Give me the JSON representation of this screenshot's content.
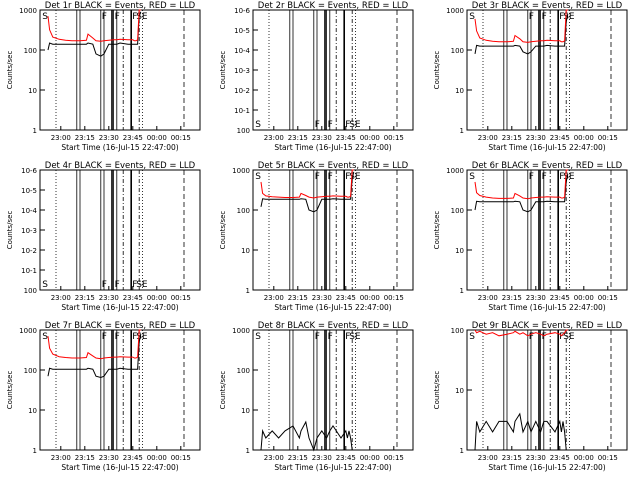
{
  "figure": {
    "start_time": "Start Time (16-Jul-15 22:47:00)",
    "ylabel": "Counts/sec",
    "x_tick_labels": [
      "23:00",
      "23:15",
      "23:30",
      "23:45",
      "00:00",
      "00:15"
    ]
  },
  "chart_data": [
    {
      "type": "line",
      "title": "Det 1r BLACK = Events, RED = LLD",
      "xlabel": "Start Time (16-Jul-15 22:47:00)",
      "ylabel": "Counts/sec",
      "yscale": "log",
      "ylim": [
        1,
        1000
      ],
      "y_tick_labels": [
        "1",
        "10",
        "100",
        "1000"
      ],
      "x_minutes_range": [
        0,
        72
      ],
      "series": [
        {
          "color": "#000000",
          "x": [
            5,
            6,
            8,
            12,
            16,
            20,
            25,
            29,
            30,
            33,
            35,
            38,
            40,
            43,
            46,
            48,
            50,
            55,
            58,
            59,
            60,
            61,
            62,
            63
          ],
          "y": [
            100,
            150,
            140,
            140,
            140,
            140,
            140,
            140,
            150,
            140,
            80,
            70,
            80,
            140,
            140,
            140,
            150,
            140,
            140,
            140,
            140,
            140,
            700,
            900
          ]
        },
        {
          "color": "#ff0000",
          "x": [
            5,
            6,
            8,
            12,
            16,
            20,
            25,
            29,
            30,
            33,
            35,
            38,
            40,
            43,
            46,
            48,
            50,
            55,
            58,
            59,
            60,
            61,
            62,
            63
          ],
          "y": [
            700,
            320,
            210,
            185,
            175,
            170,
            170,
            175,
            250,
            200,
            170,
            165,
            170,
            175,
            180,
            180,
            185,
            180,
            180,
            170,
            170,
            180,
            1000,
            1000
          ]
        }
      ],
      "annotations": [
        "S",
        "F",
        "F",
        "F",
        "SE"
      ]
    },
    {
      "type": "line",
      "title": "Det 2r BLACK = Events, RED = LLD",
      "xlabel": "Start Time (16-Jul-15 22:47:00)",
      "ylabel": "Counts/sec",
      "yscale": "log",
      "ylim": [
        1,
        1000000
      ],
      "y_tick_labels": [
        "10^0",
        "10^-1",
        "10^-2",
        "10^-3",
        "10^-4",
        "10^-5",
        "10^-6"
      ],
      "x_minutes_range": [
        0,
        72
      ],
      "series": [],
      "annotations": [
        "S",
        "F",
        "F",
        "F",
        "SE"
      ]
    },
    {
      "type": "line",
      "title": "Det 3r BLACK = Events, RED = LLD",
      "xlabel": "Start Time (16-Jul-15 22:47:00)",
      "ylabel": "Counts/sec",
      "yscale": "log",
      "ylim": [
        1,
        1000
      ],
      "y_tick_labels": [
        "1",
        "10",
        "100",
        "1000"
      ],
      "x_minutes_range": [
        0,
        72
      ],
      "series": [
        {
          "color": "#000000",
          "x": [
            5,
            6,
            8,
            12,
            16,
            20,
            25,
            29,
            30,
            33,
            35,
            38,
            40,
            43,
            46,
            48,
            50,
            55,
            58,
            59,
            60,
            61,
            62,
            63
          ],
          "y": [
            80,
            130,
            125,
            125,
            125,
            125,
            125,
            125,
            130,
            125,
            90,
            80,
            90,
            125,
            125,
            125,
            130,
            125,
            125,
            125,
            125,
            125,
            500,
            800
          ]
        },
        {
          "color": "#ff0000",
          "x": [
            5,
            6,
            8,
            12,
            16,
            20,
            25,
            29,
            30,
            33,
            35,
            38,
            40,
            43,
            46,
            48,
            50,
            55,
            58,
            59,
            60,
            61,
            62,
            63
          ],
          "y": [
            600,
            300,
            200,
            175,
            165,
            160,
            160,
            165,
            230,
            190,
            160,
            155,
            160,
            165,
            170,
            170,
            175,
            170,
            170,
            160,
            160,
            170,
            1000,
            1000
          ]
        }
      ],
      "annotations": [
        "S",
        "F",
        "F",
        "F",
        "SE"
      ]
    },
    {
      "type": "line",
      "title": "Det 4r BLACK = Events, RED = LLD",
      "xlabel": "Start Time (16-Jul-15 22:47:00)",
      "ylabel": "Counts/sec",
      "yscale": "log",
      "ylim": [
        1,
        1000000
      ],
      "y_tick_labels": [
        "10^0",
        "10^-1",
        "10^-2",
        "10^-3",
        "10^-4",
        "10^-5",
        "10^-6"
      ],
      "x_minutes_range": [
        0,
        72
      ],
      "series": [],
      "annotations": [
        "S",
        "F",
        "F",
        "F",
        "SE"
      ]
    },
    {
      "type": "line",
      "title": "Det 5r BLACK = Events, RED = LLD",
      "xlabel": "Start Time (16-Jul-15 22:47:00)",
      "ylabel": "Counts/sec",
      "yscale": "log",
      "ylim": [
        1,
        1000
      ],
      "y_tick_labels": [
        "1",
        "10",
        "100",
        "1000"
      ],
      "x_minutes_range": [
        0,
        72
      ],
      "series": [
        {
          "color": "#000000",
          "x": [
            5,
            6,
            8,
            12,
            16,
            20,
            25,
            29,
            30,
            33,
            35,
            38,
            40,
            43,
            46,
            48,
            50,
            55,
            58,
            59,
            60,
            61,
            62,
            63
          ],
          "y": [
            120,
            190,
            185,
            185,
            185,
            185,
            185,
            185,
            190,
            185,
            100,
            90,
            100,
            185,
            185,
            185,
            190,
            185,
            185,
            185,
            185,
            185,
            600,
            900
          ]
        },
        {
          "color": "#ff0000",
          "x": [
            5,
            6,
            8,
            12,
            16,
            20,
            25,
            29,
            30,
            33,
            35,
            38,
            40,
            43,
            46,
            48,
            50,
            55,
            58,
            59,
            60,
            61,
            62,
            63
          ],
          "y": [
            500,
            260,
            225,
            215,
            210,
            205,
            205,
            210,
            260,
            230,
            210,
            200,
            210,
            215,
            220,
            220,
            225,
            220,
            220,
            210,
            210,
            220,
            1000,
            1000
          ]
        }
      ],
      "annotations": [
        "S",
        "F",
        "F",
        "F",
        "SE"
      ]
    },
    {
      "type": "line",
      "title": "Det 6r BLACK = Events, RED = LLD",
      "xlabel": "Start Time (16-Jul-15 22:47:00)",
      "ylabel": "Counts/sec",
      "yscale": "log",
      "ylim": [
        1,
        1000
      ],
      "y_tick_labels": [
        "1",
        "10",
        "100",
        "1000"
      ],
      "x_minutes_range": [
        0,
        72
      ],
      "series": [
        {
          "color": "#000000",
          "x": [
            5,
            6,
            8,
            12,
            16,
            20,
            25,
            29,
            30,
            33,
            35,
            38,
            40,
            43,
            46,
            48,
            50,
            55,
            58,
            59,
            60,
            61,
            62,
            63
          ],
          "y": [
            100,
            165,
            160,
            160,
            160,
            160,
            160,
            160,
            165,
            160,
            100,
            90,
            100,
            160,
            160,
            160,
            165,
            160,
            160,
            160,
            160,
            160,
            500,
            800
          ]
        },
        {
          "color": "#ff0000",
          "x": [
            5,
            6,
            8,
            12,
            16,
            20,
            25,
            29,
            30,
            33,
            35,
            38,
            40,
            43,
            46,
            48,
            50,
            55,
            58,
            59,
            60,
            61,
            62,
            63
          ],
          "y": [
            500,
            270,
            230,
            210,
            200,
            195,
            195,
            200,
            260,
            225,
            200,
            190,
            200,
            205,
            210,
            210,
            215,
            210,
            210,
            200,
            200,
            210,
            1000,
            1000
          ]
        }
      ],
      "annotations": [
        "S",
        "F",
        "F",
        "F",
        "SE"
      ]
    },
    {
      "type": "line",
      "title": "Det 7r BLACK = Events, RED = LLD",
      "xlabel": "Start Time (16-Jul-15 22:47:00)",
      "ylabel": "Counts/sec",
      "yscale": "log",
      "ylim": [
        1,
        1000
      ],
      "y_tick_labels": [
        "1",
        "10",
        "100",
        "1000"
      ],
      "x_minutes_range": [
        0,
        72
      ],
      "series": [
        {
          "color": "#000000",
          "x": [
            5,
            6,
            8,
            12,
            16,
            20,
            25,
            29,
            30,
            33,
            35,
            38,
            40,
            43,
            46,
            48,
            50,
            55,
            58,
            59,
            60,
            61,
            62,
            63
          ],
          "y": [
            70,
            110,
            105,
            105,
            105,
            105,
            105,
            105,
            110,
            105,
            70,
            65,
            70,
            105,
            105,
            105,
            110,
            105,
            105,
            105,
            105,
            105,
            500,
            800
          ]
        },
        {
          "color": "#ff0000",
          "x": [
            5,
            6,
            8,
            12,
            16,
            20,
            25,
            29,
            30,
            33,
            35,
            38,
            40,
            43,
            46,
            48,
            50,
            55,
            58,
            59,
            60,
            61,
            62,
            63
          ],
          "y": [
            700,
            350,
            250,
            215,
            205,
            200,
            200,
            205,
            270,
            225,
            200,
            190,
            200,
            205,
            210,
            210,
            215,
            210,
            210,
            200,
            200,
            210,
            1000,
            1000
          ]
        }
      ],
      "annotations": [
        "S",
        "F",
        "F",
        "F",
        "SE"
      ]
    },
    {
      "type": "line",
      "title": "Det 8r BLACK = Events, RED = LLD",
      "xlabel": "Start Time (16-Jul-15 22:47:00)",
      "ylabel": "Counts/sec",
      "yscale": "log",
      "ylim": [
        1,
        1000
      ],
      "y_tick_labels": [
        "1",
        "10",
        "100",
        "1000"
      ],
      "x_minutes_range": [
        0,
        72
      ],
      "series": [
        {
          "color": "#000000",
          "x": [
            5,
            6,
            8,
            12,
            16,
            20,
            25,
            29,
            30,
            33,
            35,
            38,
            40,
            43,
            46,
            48,
            50,
            55,
            58,
            59,
            60,
            61,
            62,
            63
          ],
          "y": [
            1,
            3,
            2,
            3,
            2,
            3,
            4,
            2,
            3,
            5,
            2,
            1,
            2,
            3,
            2,
            3,
            4,
            2,
            3,
            2,
            3,
            2,
            1,
            1
          ]
        }
      ],
      "annotations": [
        "S",
        "F",
        "F",
        "F",
        "SE"
      ]
    },
    {
      "type": "line",
      "title": "Det 9r BLACK = Events, RED = LLD",
      "xlabel": "Start Time (16-Jul-15 22:47:00)",
      "ylabel": "Counts/sec",
      "yscale": "log",
      "ylim": [
        1,
        100
      ],
      "y_tick_labels": [
        "1",
        "10",
        "100"
      ],
      "x_minutes_range": [
        0,
        72
      ],
      "series": [
        {
          "color": "#000000",
          "x": [
            5,
            6,
            8,
            12,
            16,
            20,
            25,
            29,
            30,
            33,
            35,
            38,
            40,
            43,
            46,
            48,
            50,
            55,
            58,
            59,
            60,
            61,
            62,
            63
          ],
          "y": [
            1,
            3,
            2,
            3,
            2,
            3,
            3,
            2,
            3,
            4,
            2,
            3,
            2,
            3,
            2,
            3,
            3,
            2,
            3,
            2,
            3,
            2,
            1,
            1
          ]
        },
        {
          "color": "#ff0000",
          "x": [
            5,
            6,
            8,
            12,
            16,
            20,
            25,
            29,
            30,
            33,
            35,
            38,
            40,
            43,
            46,
            48,
            50,
            55,
            58,
            59,
            60,
            61,
            62,
            63
          ],
          "y": [
            100,
            90,
            95,
            85,
            90,
            80,
            85,
            90,
            95,
            85,
            90,
            80,
            85,
            90,
            85,
            80,
            85,
            90,
            85,
            80,
            85,
            90,
            100,
            100
          ]
        }
      ],
      "annotations": [
        "S",
        "F",
        "F",
        "F",
        "SE"
      ]
    }
  ]
}
